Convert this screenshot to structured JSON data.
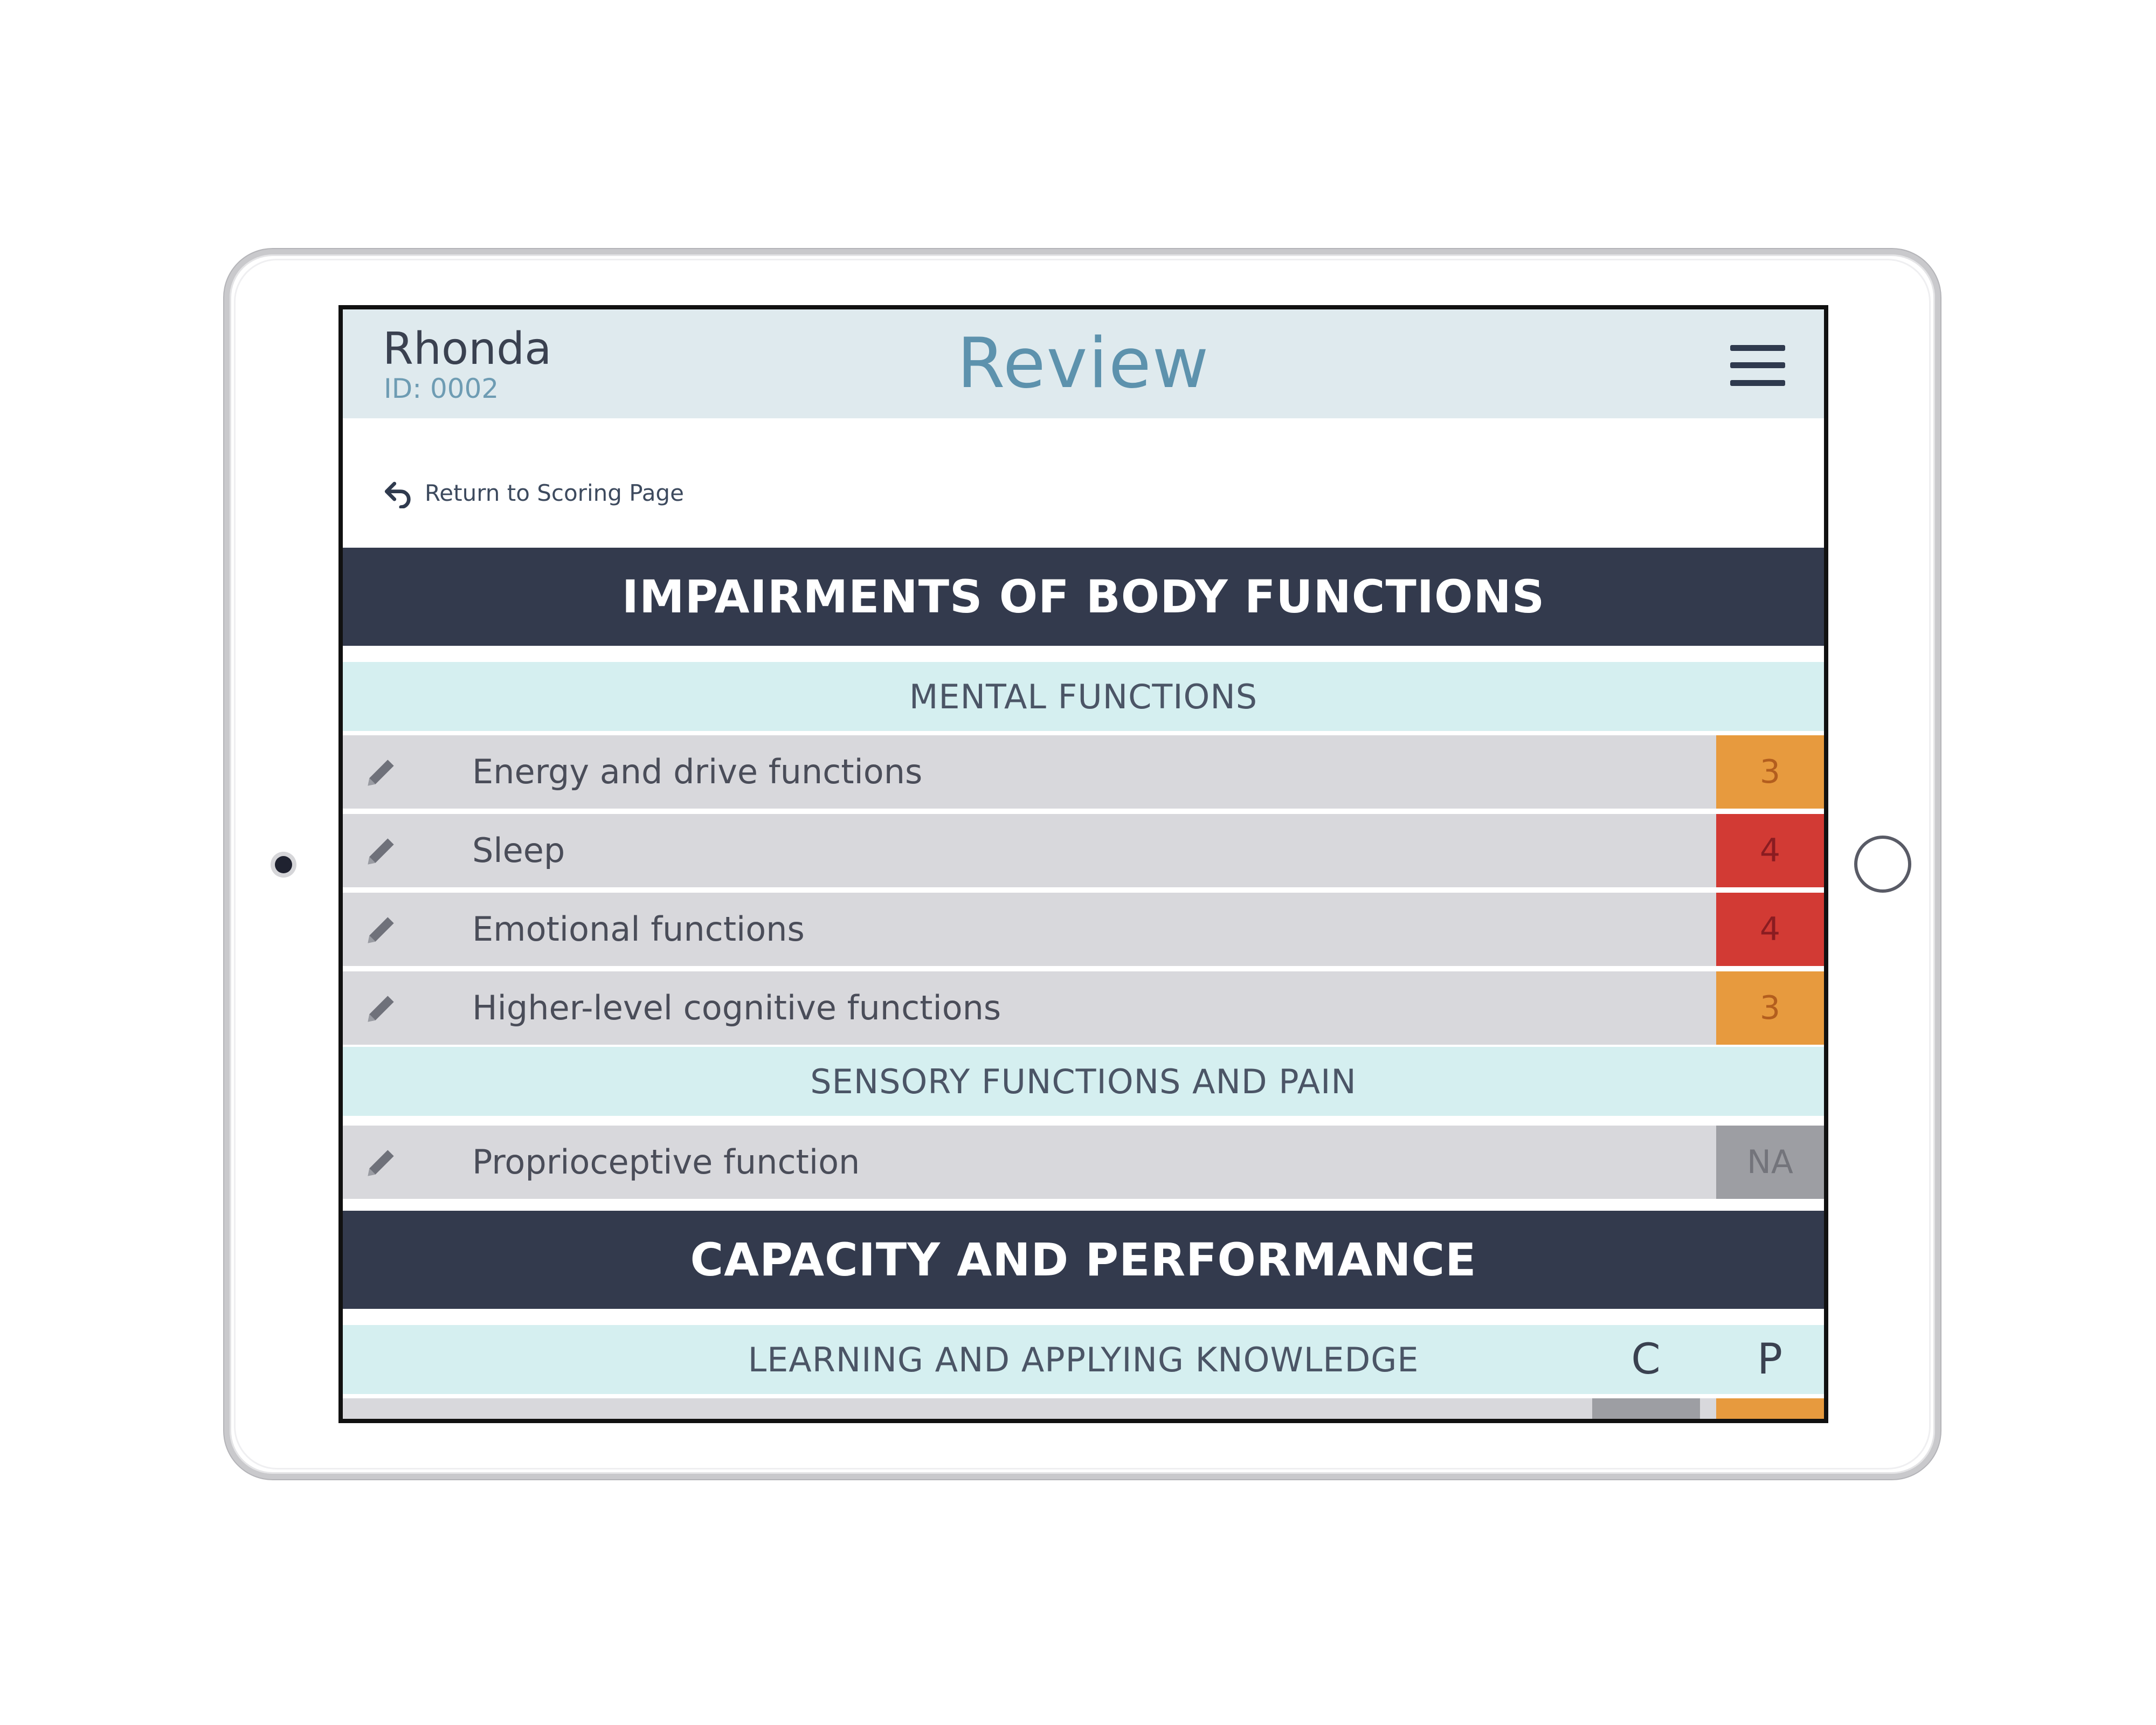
{
  "header": {
    "patient_name": "Rhonda",
    "patient_id": "ID: 0002",
    "title": "Review",
    "menu_icon": "hamburger-menu-icon"
  },
  "return_link": {
    "label": "Return to Scoring Page",
    "icon": "return-arrow-icon"
  },
  "sections": [
    {
      "title": "IMPAIRMENTS OF BODY FUNCTIONS",
      "groups": [
        {
          "title": "MENTAL FUNCTIONS",
          "items": [
            {
              "label": "Energy and drive functions",
              "score": "3",
              "score_color": "#e79a3e"
            },
            {
              "label": "Sleep",
              "score": "4",
              "score_color": "#d23a34"
            },
            {
              "label": "Emotional functions",
              "score": "4",
              "score_color": "#d23a34"
            },
            {
              "label": "Higher-level cognitive functions",
              "score": "3",
              "score_color": "#e79a3e"
            }
          ]
        },
        {
          "title": "SENSORY FUNCTIONS AND PAIN",
          "items": [
            {
              "label": "Proprioceptive function",
              "score": "NA",
              "score_color": "#9d9ea3"
            }
          ]
        }
      ]
    },
    {
      "title": "CAPACITY AND PERFORMANCE",
      "groups": [
        {
          "title": "LEARNING AND APPLYING KNOWLEDGE",
          "column_labels": {
            "capacity": "C",
            "performance": "P"
          },
          "items": [
            {
              "label": "",
              "capacity_score": "",
              "capacity_color": "#9d9ea3",
              "performance_score": "",
              "performance_color": "#e79a3e"
            }
          ]
        }
      ]
    }
  ],
  "colors": {
    "header_bg": "#dfeaee",
    "section_bg": "#333a4d",
    "group_bg": "#d5eff0",
    "row_bg": "#d8d8dc",
    "orange": "#e79a3e",
    "red": "#d23a34",
    "gray": "#9d9ea3"
  }
}
